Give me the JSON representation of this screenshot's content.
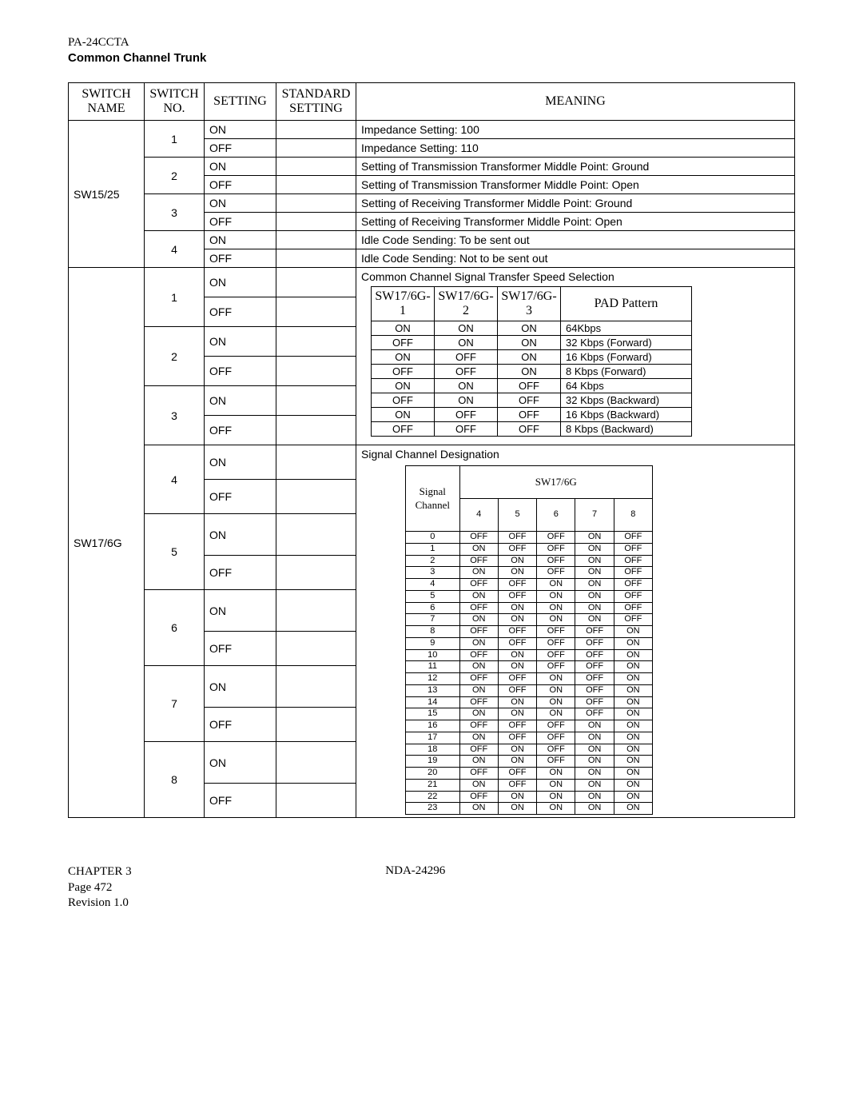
{
  "header": {
    "code": "PA-24CCTA",
    "title": "Common Channel Trunk"
  },
  "columns": {
    "name": "SWITCH\nNAME",
    "no": "SWITCH\nNO.",
    "setting": "SETTING",
    "standard": "STANDARD\nSETTING",
    "meaning": "MEANING"
  },
  "sw15": {
    "name": "SW15/25",
    "rows": [
      {
        "no": "1",
        "s1": "ON",
        "m1": "Impedance Setting: 100",
        "s2": "OFF",
        "m2": "Impedance Setting: 110"
      },
      {
        "no": "2",
        "s1": "ON",
        "m1": "Setting of Transmission Transformer Middle Point: Ground",
        "s2": "OFF",
        "m2": "Setting of Transmission Transformer Middle Point: Open"
      },
      {
        "no": "3",
        "s1": "ON",
        "m1": "Setting of Receiving Transformer Middle Point: Ground",
        "s2": "OFF",
        "m2": "Setting of Receiving Transformer Middle Point: Open"
      },
      {
        "no": "4",
        "s1": "ON",
        "m1": "Idle Code Sending: To be sent out",
        "s2": "OFF",
        "m2": "Idle Code Sending: Not to be sent out"
      }
    ]
  },
  "sw17": {
    "name": "SW17/6G",
    "sect1": {
      "title": "Common Channel Signal Transfer Speed Selection",
      "nos": [
        "1",
        "2",
        "3"
      ],
      "settings": [
        "ON",
        "OFF",
        "ON",
        "OFF",
        "ON",
        "OFF"
      ],
      "padHeaders": [
        "SW17/6G-1",
        "SW17/6G-2",
        "SW17/6G-3",
        "PAD Pattern"
      ],
      "padRows": [
        [
          "ON",
          "ON",
          "ON",
          "64Kbps"
        ],
        [
          "OFF",
          "ON",
          "ON",
          "32 Kbps (Forward)"
        ],
        [
          "ON",
          "OFF",
          "ON",
          "16 Kbps (Forward)"
        ],
        [
          "OFF",
          "OFF",
          "ON",
          "8 Kbps (Forward)"
        ],
        [
          "ON",
          "ON",
          "OFF",
          "64 Kbps"
        ],
        [
          "OFF",
          "ON",
          "OFF",
          "32 Kbps (Backward)"
        ],
        [
          "ON",
          "OFF",
          "OFF",
          "16 Kbps (Backward)"
        ],
        [
          "OFF",
          "OFF",
          "OFF",
          "8 Kbps (Backward)"
        ]
      ]
    },
    "sect2": {
      "title": "Signal Channel Designation",
      "nos": [
        "4",
        "5",
        "6",
        "7",
        "8"
      ],
      "settings": [
        "ON",
        "OFF",
        "ON",
        "OFF",
        "ON",
        "OFF",
        "ON",
        "OFF",
        "ON",
        "OFF"
      ],
      "sigH1": "Signal\nChannel",
      "sigH2": "SW17/6G",
      "sigCols": [
        "4",
        "5",
        "6",
        "7",
        "8"
      ],
      "sigRows": [
        [
          "0",
          "OFF",
          "OFF",
          "OFF",
          "ON",
          "OFF"
        ],
        [
          "1",
          "ON",
          "OFF",
          "OFF",
          "ON",
          "OFF"
        ],
        [
          "2",
          "OFF",
          "ON",
          "OFF",
          "ON",
          "OFF"
        ],
        [
          "3",
          "ON",
          "ON",
          "OFF",
          "ON",
          "OFF"
        ],
        [
          "4",
          "OFF",
          "OFF",
          "ON",
          "ON",
          "OFF"
        ],
        [
          "5",
          "ON",
          "OFF",
          "ON",
          "ON",
          "OFF"
        ],
        [
          "6",
          "OFF",
          "ON",
          "ON",
          "ON",
          "OFF"
        ],
        [
          "7",
          "ON",
          "ON",
          "ON",
          "ON",
          "OFF"
        ],
        [
          "8",
          "OFF",
          "OFF",
          "OFF",
          "OFF",
          "ON"
        ],
        [
          "9",
          "ON",
          "OFF",
          "OFF",
          "OFF",
          "ON"
        ],
        [
          "10",
          "OFF",
          "ON",
          "OFF",
          "OFF",
          "ON"
        ],
        [
          "11",
          "ON",
          "ON",
          "OFF",
          "OFF",
          "ON"
        ],
        [
          "12",
          "OFF",
          "OFF",
          "ON",
          "OFF",
          "ON"
        ],
        [
          "13",
          "ON",
          "OFF",
          "ON",
          "OFF",
          "ON"
        ],
        [
          "14",
          "OFF",
          "ON",
          "ON",
          "OFF",
          "ON"
        ],
        [
          "15",
          "ON",
          "ON",
          "ON",
          "OFF",
          "ON"
        ],
        [
          "16",
          "OFF",
          "OFF",
          "OFF",
          "ON",
          "ON"
        ],
        [
          "17",
          "ON",
          "OFF",
          "OFF",
          "ON",
          "ON"
        ],
        [
          "18",
          "OFF",
          "ON",
          "OFF",
          "ON",
          "ON"
        ],
        [
          "19",
          "ON",
          "ON",
          "OFF",
          "ON",
          "ON"
        ],
        [
          "20",
          "OFF",
          "OFF",
          "ON",
          "ON",
          "ON"
        ],
        [
          "21",
          "ON",
          "OFF",
          "ON",
          "ON",
          "ON"
        ],
        [
          "22",
          "OFF",
          "ON",
          "ON",
          "ON",
          "ON"
        ],
        [
          "23",
          "ON",
          "ON",
          "ON",
          "ON",
          "ON"
        ]
      ]
    }
  },
  "footer": {
    "chapter": "CHAPTER 3",
    "page": "Page 472",
    "rev": "Revision 1.0",
    "doc": "NDA-24296"
  }
}
